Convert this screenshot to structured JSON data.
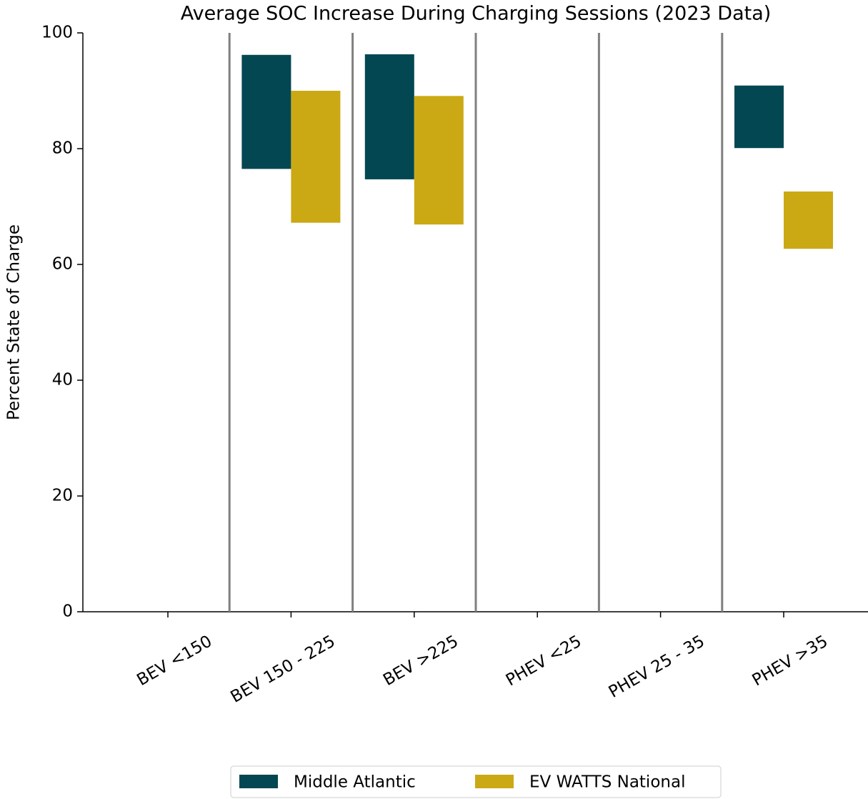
{
  "chart_data": {
    "type": "floating-bar",
    "title": "Average SOC Increase During Charging Sessions (2023 Data)",
    "y_label": "Percent State of Charge",
    "categories": [
      "BEV <150",
      "BEV 150 - 225",
      "BEV >225",
      "PHEV <25",
      "PHEV 25 - 35",
      "PHEV >35"
    ],
    "series": [
      {
        "name": "Middle Atlantic",
        "color": "#034752",
        "low": [
          null,
          76.5,
          74.7,
          null,
          null,
          80.1
        ],
        "high": [
          null,
          96.2,
          96.3,
          null,
          null,
          90.9
        ]
      },
      {
        "name": "EV WATTS National",
        "color": "#cba915",
        "low": [
          null,
          67.2,
          66.9,
          null,
          null,
          62.7
        ],
        "high": [
          null,
          90.0,
          89.1,
          null,
          null,
          72.6
        ]
      }
    ],
    "ylim": [
      0,
      100
    ],
    "yticks": [
      0,
      20,
      40,
      60,
      80,
      100
    ],
    "grid": false,
    "legend": "bottom"
  }
}
